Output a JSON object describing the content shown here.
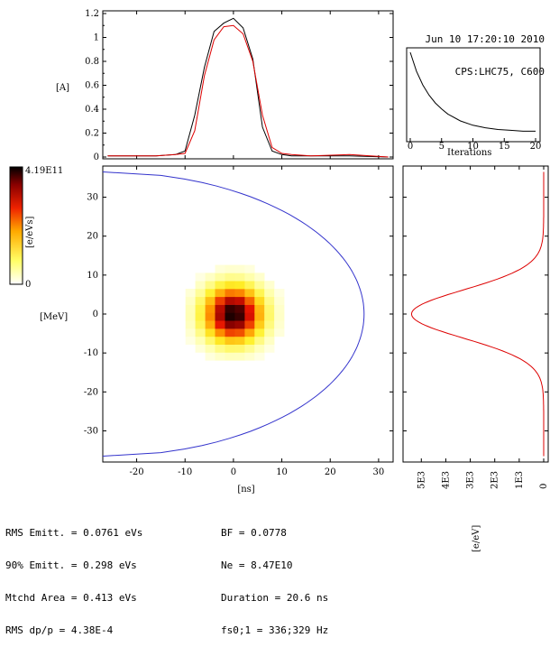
{
  "header": {
    "timestamp": "Jun 10 17:20:10 2010",
    "cycle": "CPS:LHC75, C600"
  },
  "stats": {
    "left": [
      "RMS Emitt. = 0.0761 eVs",
      "90% Emitt. = 0.298 eVs",
      "Mtchd Area = 0.413 eVs",
      "RMS dp/p = 4.38E-4"
    ],
    "right": [
      "BF = 0.0778",
      "Ne = 8.47E10",
      "Duration = 20.6 ns",
      "fs0;1 = 336;329 Hz"
    ]
  },
  "chart_data": [
    {
      "type": "line",
      "panel": "profile",
      "ylabel": "[A]",
      "xlim": [
        -27,
        33
      ],
      "ylim": [
        0,
        1.2
      ],
      "yticks": [
        "0",
        "0.2",
        "0.4",
        "0.6",
        "0.8",
        "1",
        "1.2"
      ],
      "series": [
        {
          "color": "#000000",
          "x": [
            -26,
            -16,
            -12,
            -10,
            -8,
            -6,
            -4,
            -2,
            0,
            2,
            4,
            6,
            8,
            10,
            12,
            16,
            24,
            32
          ],
          "y": [
            0.01,
            0.01,
            0.02,
            0.05,
            0.35,
            0.75,
            1.05,
            1.12,
            1.16,
            1.08,
            0.82,
            0.25,
            0.05,
            0.02,
            0.01,
            0.01,
            0.01,
            0.0
          ]
        },
        {
          "color": "#dd0000",
          "x": [
            -26,
            -16,
            -12,
            -10,
            -8,
            -6,
            -4,
            -2,
            0,
            2,
            4,
            6,
            8,
            10,
            12,
            16,
            24,
            32
          ],
          "y": [
            0.01,
            0.01,
            0.02,
            0.03,
            0.22,
            0.68,
            0.98,
            1.09,
            1.1,
            1.03,
            0.8,
            0.35,
            0.08,
            0.03,
            0.02,
            0.01,
            0.02,
            0.0
          ]
        }
      ]
    },
    {
      "type": "line",
      "panel": "convergence",
      "xlabel": "Iterations",
      "xlim": [
        0,
        20
      ],
      "xticks": [
        "0",
        "5",
        "10",
        "15",
        "20"
      ],
      "series": [
        {
          "color": "#000000",
          "x": [
            0,
            1,
            2,
            3,
            4,
            5,
            6,
            8,
            10,
            12,
            14,
            16,
            18,
            20
          ],
          "y": [
            1.0,
            0.78,
            0.62,
            0.5,
            0.41,
            0.34,
            0.28,
            0.2,
            0.15,
            0.12,
            0.1,
            0.09,
            0.08,
            0.08
          ]
        }
      ]
    },
    {
      "type": "heatmap",
      "panel": "phase-space",
      "xlabel": "[ns]",
      "ylabel": "[MeV]",
      "xlim": [
        -27,
        33
      ],
      "ylim": [
        -38,
        38
      ],
      "xticks": [
        -20,
        -10,
        0,
        10,
        20,
        30
      ],
      "yticks": [
        -30,
        -20,
        -10,
        0,
        10,
        20,
        30
      ],
      "colorbar": {
        "max_label": "4.19E11",
        "min_label": "0",
        "unit_label": "[e/eVs]"
      },
      "center": [
        0,
        0
      ],
      "sigma_ns": 4.2,
      "sigma_mev": 5.0,
      "separatrix": {
        "color": "#3333cc",
        "x_max": 27,
        "y_max": 36.5,
        "x_min": -27
      }
    },
    {
      "type": "line",
      "panel": "energy-profile",
      "xlabel": "[e/eV]",
      "xticks": [
        "5E3",
        "4E3",
        "3E3",
        "2E3",
        "1E3",
        "0"
      ],
      "xlim": [
        0,
        5600
      ],
      "ylim": [
        -38,
        38
      ],
      "series": [
        {
          "color": "#dd0000",
          "peak": 5400,
          "sigma_mev": 6.2
        }
      ]
    }
  ]
}
